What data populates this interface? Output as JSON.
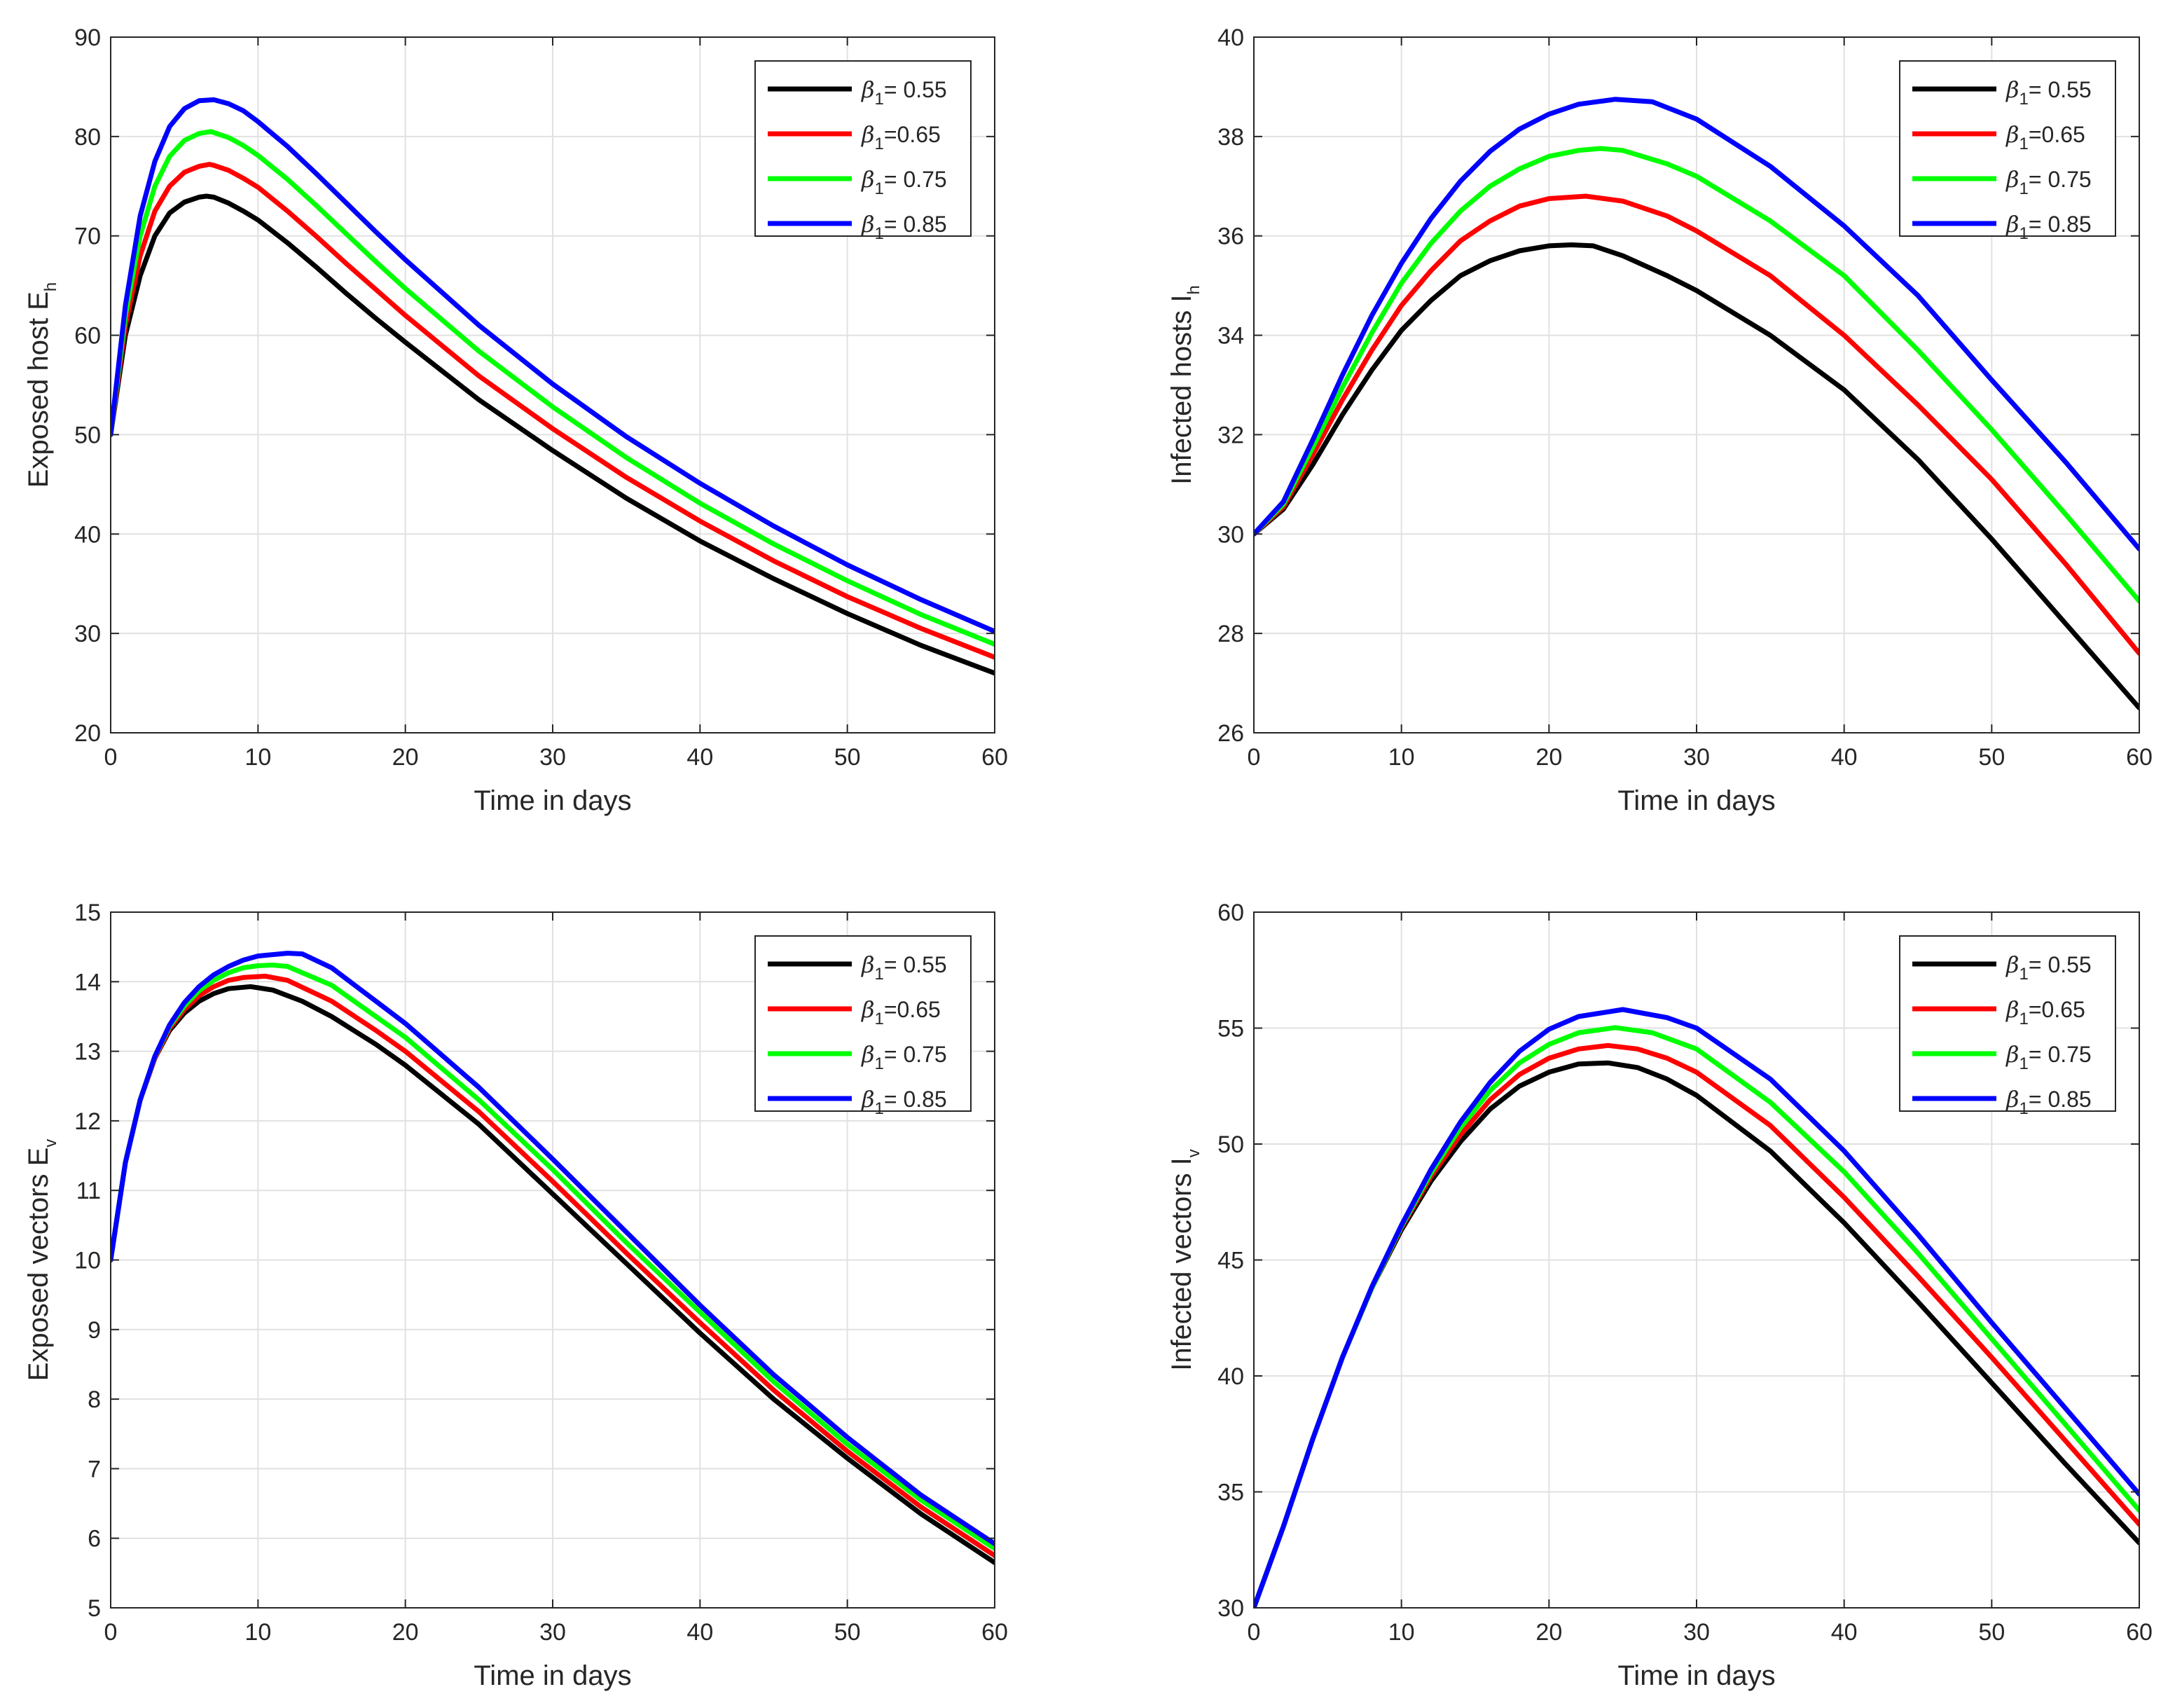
{
  "chart_data": [
    {
      "type": "line",
      "xlabel": "Time in days",
      "ylabel": {
        "main": "Exposed host E",
        "sub": "h"
      },
      "xlim": [
        0,
        60
      ],
      "ylim": [
        20,
        90
      ],
      "xticks": [
        0,
        10,
        20,
        30,
        40,
        50,
        60
      ],
      "yticks": [
        20,
        30,
        40,
        50,
        60,
        70,
        80,
        90
      ],
      "grid": true,
      "legend_position": "top-right",
      "series": [
        {
          "name": {
            "greek": "β",
            "sub": "1",
            "rest": "= 0.55"
          },
          "color": "#000000",
          "x": [
            0,
            1,
            2,
            3,
            4,
            5,
            6,
            6.5,
            7,
            8,
            9,
            10,
            12,
            14,
            16,
            18,
            20,
            25,
            30,
            35,
            40,
            45,
            50,
            55,
            60
          ],
          "y": [
            50,
            60,
            66,
            70,
            72.3,
            73.4,
            73.9,
            74,
            73.9,
            73.3,
            72.5,
            71.6,
            69.3,
            66.8,
            64.2,
            61.7,
            59.3,
            53.5,
            48.4,
            43.6,
            39.3,
            35.5,
            32,
            28.8,
            26
          ]
        },
        {
          "name": {
            "greek": "β",
            "sub": "1",
            "rest": "=0.65"
          },
          "color": "#ff0000",
          "x": [
            0,
            1,
            2,
            3,
            4,
            5,
            6,
            6.7,
            7,
            8,
            9,
            10,
            12,
            14,
            16,
            18,
            20,
            25,
            30,
            35,
            40,
            45,
            50,
            55,
            60
          ],
          "y": [
            50,
            61,
            68,
            72.5,
            75,
            76.4,
            77,
            77.2,
            77.1,
            76.6,
            75.8,
            74.9,
            72.5,
            69.9,
            67.2,
            64.6,
            62,
            55.9,
            50.6,
            45.7,
            41.3,
            37.3,
            33.7,
            30.5,
            27.6
          ]
        },
        {
          "name": {
            "greek": "β",
            "sub": "1",
            "rest": "= 0.75"
          },
          "color": "#00ff00",
          "x": [
            0,
            1,
            2,
            3,
            4,
            5,
            6,
            6.8,
            7,
            8,
            9,
            10,
            12,
            14,
            16,
            18,
            20,
            25,
            30,
            35,
            40,
            45,
            50,
            55,
            60
          ],
          "y": [
            50,
            62,
            70,
            75,
            78,
            79.6,
            80.3,
            80.5,
            80.4,
            79.9,
            79.1,
            78.1,
            75.7,
            73,
            70.2,
            67.4,
            64.7,
            58.4,
            52.8,
            47.7,
            43.1,
            39,
            35.3,
            31.9,
            28.9
          ]
        },
        {
          "name": {
            "greek": "β",
            "sub": "1",
            "rest": "= 0.85"
          },
          "color": "#0000ff",
          "x": [
            0,
            1,
            2,
            3,
            4,
            5,
            6,
            7,
            8,
            9,
            10,
            12,
            14,
            16,
            18,
            20,
            25,
            30,
            35,
            40,
            45,
            50,
            55,
            60
          ],
          "y": [
            50,
            63,
            72,
            77.5,
            81,
            82.8,
            83.6,
            83.7,
            83.3,
            82.6,
            81.5,
            79,
            76.2,
            73.3,
            70.4,
            67.6,
            61,
            55.1,
            49.8,
            45.1,
            40.8,
            36.9,
            33.4,
            30.2
          ]
        }
      ]
    },
    {
      "type": "line",
      "xlabel": "Time in days",
      "ylabel": {
        "main": "Infected  hosts I",
        "sub": "h"
      },
      "xlim": [
        0,
        60
      ],
      "ylim": [
        26,
        40
      ],
      "xticks": [
        0,
        10,
        20,
        30,
        40,
        50,
        60
      ],
      "yticks": [
        26,
        28,
        30,
        32,
        34,
        36,
        38,
        40
      ],
      "grid": true,
      "legend_position": "top-right",
      "series": [
        {
          "name": {
            "greek": "β",
            "sub": "1",
            "rest": "= 0.55"
          },
          "color": "#000000",
          "x": [
            0,
            2,
            4,
            6,
            8,
            10,
            12,
            14,
            16,
            18,
            20,
            21.5,
            23,
            25,
            28,
            30,
            35,
            40,
            45,
            50,
            55,
            60
          ],
          "y": [
            30,
            30.5,
            31.4,
            32.4,
            33.3,
            34.1,
            34.7,
            35.2,
            35.5,
            35.7,
            35.8,
            35.82,
            35.8,
            35.6,
            35.2,
            34.9,
            34,
            32.9,
            31.5,
            29.9,
            28.2,
            26.5
          ]
        },
        {
          "name": {
            "greek": "β",
            "sub": "1",
            "rest": "=0.65"
          },
          "color": "#ff0000",
          "x": [
            0,
            2,
            4,
            6,
            8,
            10,
            12,
            14,
            16,
            18,
            20,
            22.5,
            25,
            28,
            30,
            35,
            40,
            45,
            50,
            55,
            60
          ],
          "y": [
            30,
            30.55,
            31.6,
            32.7,
            33.7,
            34.6,
            35.3,
            35.9,
            36.3,
            36.6,
            36.75,
            36.8,
            36.7,
            36.4,
            36.1,
            35.2,
            34,
            32.6,
            31.1,
            29.4,
            27.6
          ]
        },
        {
          "name": {
            "greek": "β",
            "sub": "1",
            "rest": "= 0.75"
          },
          "color": "#00ff00",
          "x": [
            0,
            2,
            4,
            6,
            8,
            10,
            12,
            14,
            16,
            18,
            20,
            22,
            23.5,
            25,
            28,
            30,
            35,
            40,
            45,
            50,
            55,
            60
          ],
          "y": [
            30,
            30.6,
            31.75,
            32.95,
            34.05,
            35.05,
            35.85,
            36.5,
            37,
            37.35,
            37.6,
            37.72,
            37.76,
            37.72,
            37.45,
            37.2,
            36.3,
            35.2,
            33.7,
            32.1,
            30.4,
            28.65
          ]
        },
        {
          "name": {
            "greek": "β",
            "sub": "1",
            "rest": "= 0.85"
          },
          "color": "#0000ff",
          "x": [
            0,
            2,
            4,
            6,
            8,
            10,
            12,
            14,
            16,
            18,
            20,
            22,
            24.5,
            27,
            30,
            35,
            40,
            45,
            50,
            55,
            60
          ],
          "y": [
            30,
            30.65,
            31.9,
            33.2,
            34.4,
            35.45,
            36.35,
            37.1,
            37.7,
            38.15,
            38.45,
            38.65,
            38.75,
            38.7,
            38.35,
            37.4,
            36.2,
            34.8,
            33.1,
            31.45,
            29.7
          ]
        }
      ]
    },
    {
      "type": "line",
      "xlabel": "Time in days",
      "ylabel": {
        "main": "Exposed vectors E",
        "sub": "v"
      },
      "xlim": [
        0,
        60
      ],
      "ylim": [
        5,
        15
      ],
      "xticks": [
        0,
        10,
        20,
        30,
        40,
        50,
        60
      ],
      "yticks": [
        5,
        6,
        7,
        8,
        9,
        10,
        11,
        12,
        13,
        14,
        15
      ],
      "grid": true,
      "legend_position": "top-right",
      "series": [
        {
          "name": {
            "greek": "β",
            "sub": "1",
            "rest": "= 0.55"
          },
          "color": "#000000",
          "x": [
            0,
            1,
            2,
            3,
            4,
            5,
            6,
            7,
            8,
            9.5,
            11,
            13,
            15,
            18,
            20,
            25,
            30,
            35,
            40,
            45,
            50,
            55,
            60
          ],
          "y": [
            10,
            11.4,
            12.3,
            12.9,
            13.3,
            13.55,
            13.72,
            13.83,
            13.9,
            13.93,
            13.88,
            13.72,
            13.5,
            13.1,
            12.8,
            11.95,
            10.95,
            9.95,
            8.95,
            8,
            7.15,
            6.35,
            5.65
          ]
        },
        {
          "name": {
            "greek": "β",
            "sub": "1",
            "rest": "=0.65"
          },
          "color": "#ff0000",
          "x": [
            0,
            1,
            2,
            3,
            4,
            5,
            6,
            7,
            8,
            9,
            10.5,
            12,
            15,
            18,
            20,
            25,
            30,
            35,
            40,
            45,
            50,
            55,
            60
          ],
          "y": [
            10,
            11.4,
            12.3,
            12.9,
            13.33,
            13.6,
            13.8,
            13.93,
            14.02,
            14.06,
            14.08,
            14.02,
            13.72,
            13.3,
            13,
            12.13,
            11.13,
            10.1,
            9.1,
            8.13,
            7.25,
            6.45,
            5.75
          ]
        },
        {
          "name": {
            "greek": "β",
            "sub": "1",
            "rest": "= 0.75"
          },
          "color": "#00ff00",
          "x": [
            0,
            1,
            2,
            3,
            4,
            5,
            6,
            7,
            8,
            9,
            10,
            11,
            12,
            15,
            18,
            20,
            25,
            30,
            35,
            40,
            45,
            50,
            55,
            60
          ],
          "y": [
            10,
            11.4,
            12.3,
            12.92,
            13.36,
            13.65,
            13.87,
            14.02,
            14.13,
            14.2,
            14.23,
            14.24,
            14.22,
            13.95,
            13.5,
            13.2,
            12.3,
            11.3,
            10.25,
            9.25,
            8.25,
            7.35,
            6.55,
            5.85
          ]
        },
        {
          "name": {
            "greek": "β",
            "sub": "1",
            "rest": "= 0.85"
          },
          "color": "#0000ff",
          "x": [
            0,
            1,
            2,
            3,
            4,
            5,
            6,
            7,
            8,
            9,
            10,
            12,
            13,
            15,
            18,
            20,
            25,
            30,
            35,
            40,
            45,
            50,
            55,
            60
          ],
          "y": [
            10,
            11.4,
            12.3,
            12.93,
            13.38,
            13.7,
            13.93,
            14.1,
            14.22,
            14.31,
            14.37,
            14.41,
            14.4,
            14.2,
            13.72,
            13.4,
            12.48,
            11.45,
            10.4,
            9.35,
            8.35,
            7.45,
            6.62,
            5.92
          ]
        }
      ]
    },
    {
      "type": "line",
      "xlabel": "Time in days",
      "ylabel": {
        "main": "Infected vectors I",
        "sub": "v"
      },
      "xlim": [
        0,
        60
      ],
      "ylim": [
        30,
        60
      ],
      "xticks": [
        0,
        10,
        20,
        30,
        40,
        50,
        60
      ],
      "yticks": [
        30,
        35,
        40,
        45,
        50,
        55,
        60
      ],
      "grid": true,
      "legend_position": "top-right",
      "series": [
        {
          "name": {
            "greek": "β",
            "sub": "1",
            "rest": "= 0.55"
          },
          "color": "#000000",
          "x": [
            0,
            2,
            4,
            6,
            8,
            10,
            12,
            14,
            16,
            18,
            20,
            22,
            24,
            26,
            28,
            30,
            35,
            40,
            45,
            50,
            55,
            60
          ],
          "y": [
            30,
            33.5,
            37.3,
            40.8,
            43.8,
            46.3,
            48.4,
            50.1,
            51.5,
            52.5,
            53.1,
            53.45,
            53.5,
            53.3,
            52.8,
            52.1,
            49.7,
            46.6,
            43.2,
            39.7,
            36.2,
            32.8
          ]
        },
        {
          "name": {
            "greek": "β",
            "sub": "1",
            "rest": "=0.65"
          },
          "color": "#ff0000",
          "x": [
            0,
            2,
            4,
            6,
            8,
            10,
            12,
            14,
            16,
            18,
            20,
            22,
            24,
            26,
            28,
            30,
            35,
            40,
            45,
            50,
            55,
            60
          ],
          "y": [
            30,
            33.5,
            37.3,
            40.8,
            43.8,
            46.4,
            48.6,
            50.4,
            51.9,
            53,
            53.7,
            54.1,
            54.25,
            54.1,
            53.7,
            53.1,
            50.8,
            47.7,
            44.3,
            40.8,
            37.2,
            33.6
          ]
        },
        {
          "name": {
            "greek": "β",
            "sub": "1",
            "rest": "= 0.75"
          },
          "color": "#00ff00",
          "x": [
            0,
            2,
            4,
            6,
            8,
            10,
            12,
            14,
            16,
            18,
            20,
            22,
            24.5,
            27,
            30,
            35,
            40,
            45,
            50,
            55,
            60
          ],
          "y": [
            30,
            33.5,
            37.3,
            40.8,
            43.8,
            46.45,
            48.75,
            50.7,
            52.3,
            53.5,
            54.3,
            54.8,
            55.02,
            54.8,
            54.1,
            51.8,
            48.8,
            45.3,
            41.6,
            37.9,
            34.2
          ]
        },
        {
          "name": {
            "greek": "β",
            "sub": "1",
            "rest": "= 0.85"
          },
          "color": "#0000ff",
          "x": [
            0,
            2,
            4,
            6,
            8,
            10,
            12,
            14,
            16,
            18,
            20,
            22,
            25,
            28,
            30,
            35,
            40,
            45,
            50,
            55,
            60
          ],
          "y": [
            30,
            33.5,
            37.3,
            40.8,
            43.85,
            46.5,
            48.9,
            50.95,
            52.65,
            54,
            54.95,
            55.5,
            55.8,
            55.45,
            55,
            52.8,
            49.7,
            46.1,
            42.3,
            38.6,
            34.9
          ]
        }
      ]
    }
  ]
}
